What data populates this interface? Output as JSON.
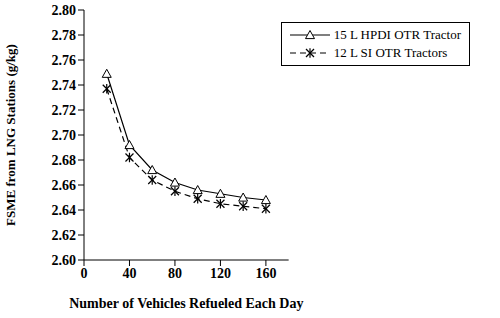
{
  "chart_data": {
    "type": "line",
    "x_label": "Number of Vehicles Refueled Each Day",
    "y_label": "FSME from LNG Stations (g/kg)",
    "x": [
      20,
      40,
      60,
      80,
      100,
      120,
      140,
      160
    ],
    "series": [
      {
        "name": "15 L HPDI OTR Tractor",
        "color": "#000000",
        "marker": "triangle",
        "line_style": "solid",
        "values": [
          2.749,
          2.692,
          2.672,
          2.662,
          2.656,
          2.653,
          2.65,
          2.648
        ]
      },
      {
        "name": "12 L SI OTR Tractors",
        "color": "#000000",
        "marker": "asterisk",
        "line_style": "dashed",
        "values": [
          2.737,
          2.682,
          2.664,
          2.655,
          2.649,
          2.645,
          2.643,
          2.641
        ]
      }
    ],
    "xlim": [
      0,
      180
    ],
    "xticks": [
      0,
      40,
      80,
      120,
      160
    ],
    "ylim": [
      2.6,
      2.8
    ],
    "yticks": [
      {
        "value": 2.6,
        "label": "2.60"
      },
      2.62,
      2.64,
      2.66,
      2.68,
      {
        "value": 2.7,
        "label": "2.70"
      },
      2.72,
      2.74,
      2.76,
      2.78,
      {
        "value": 2.8,
        "label": "2.80"
      }
    ],
    "grid": false,
    "legend": "upper right"
  }
}
